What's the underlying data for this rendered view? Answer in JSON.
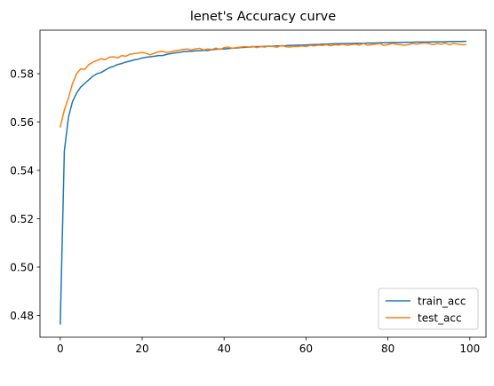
{
  "chart_data": {
    "type": "line",
    "title": "lenet's Accuracy curve",
    "xlabel": "",
    "ylabel": "",
    "xlim": [
      -4.95,
      103.95
    ],
    "ylim": [
      0.471,
      0.598
    ],
    "x_ticks": [
      0,
      20,
      40,
      60,
      80,
      100
    ],
    "y_ticks": [
      0.48,
      0.5,
      0.52,
      0.54,
      0.56,
      0.58
    ],
    "y_tick_labels": [
      "0.48",
      "0.50",
      "0.52",
      "0.54",
      "0.56",
      "0.58"
    ],
    "grid": false,
    "legend_position": "lower-right",
    "x": [
      0,
      1,
      2,
      3,
      4,
      5,
      6,
      7,
      8,
      9,
      10,
      11,
      12,
      13,
      14,
      15,
      16,
      17,
      18,
      19,
      20,
      21,
      22,
      23,
      24,
      25,
      26,
      27,
      28,
      29,
      30,
      31,
      32,
      33,
      34,
      35,
      36,
      37,
      38,
      39,
      40,
      41,
      42,
      43,
      44,
      45,
      46,
      47,
      48,
      49,
      50,
      51,
      52,
      53,
      54,
      55,
      56,
      57,
      58,
      59,
      60,
      61,
      62,
      63,
      64,
      65,
      66,
      67,
      68,
      69,
      70,
      71,
      72,
      73,
      74,
      75,
      76,
      77,
      78,
      79,
      80,
      81,
      82,
      83,
      84,
      85,
      86,
      87,
      88,
      89,
      90,
      91,
      92,
      93,
      94,
      95,
      96,
      97,
      98,
      99
    ],
    "series": [
      {
        "name": "train_acc",
        "color": "#1f77b4",
        "values": [
          0.4765,
          0.548,
          0.562,
          0.5685,
          0.572,
          0.5745,
          0.576,
          0.5775,
          0.579,
          0.58,
          0.5805,
          0.5815,
          0.5825,
          0.583,
          0.5838,
          0.5842,
          0.5848,
          0.5852,
          0.5857,
          0.586,
          0.5865,
          0.5868,
          0.587,
          0.5872,
          0.5875,
          0.5875,
          0.588,
          0.5883,
          0.5886,
          0.5888,
          0.5891,
          0.5892,
          0.5893,
          0.5894,
          0.5895,
          0.5896,
          0.5896,
          0.5899,
          0.5901,
          0.5902,
          0.5902,
          0.5904,
          0.5905,
          0.5906,
          0.5908,
          0.5909,
          0.591,
          0.5911,
          0.5912,
          0.5912,
          0.5913,
          0.5914,
          0.5914,
          0.5915,
          0.5915,
          0.5916,
          0.5917,
          0.5917,
          0.5918,
          0.5918,
          0.5919,
          0.592,
          0.5921,
          0.5921,
          0.5922,
          0.5922,
          0.5923,
          0.5924,
          0.5924,
          0.5925,
          0.5925,
          0.5925,
          0.5926,
          0.5926,
          0.5926,
          0.5927,
          0.5927,
          0.5927,
          0.5928,
          0.5928,
          0.5928,
          0.5929,
          0.5929,
          0.5929,
          0.593,
          0.593,
          0.593,
          0.5931,
          0.5931,
          0.5931,
          0.5931,
          0.5932,
          0.5932,
          0.5932,
          0.5932,
          0.5933,
          0.5933,
          0.5933,
          0.5933,
          0.5934
        ]
      },
      {
        "name": "test_acc",
        "color": "#ff7f0e",
        "values": [
          0.558,
          0.565,
          0.57,
          0.576,
          0.58,
          0.582,
          0.5818,
          0.5838,
          0.5848,
          0.5855,
          0.5862,
          0.5858,
          0.5868,
          0.587,
          0.5865,
          0.5875,
          0.5872,
          0.588,
          0.5883,
          0.5885,
          0.5888,
          0.5884,
          0.5878,
          0.5885,
          0.589,
          0.5892,
          0.5888,
          0.589,
          0.5895,
          0.5897,
          0.59,
          0.5902,
          0.5898,
          0.5902,
          0.5905,
          0.5898,
          0.5902,
          0.59,
          0.5906,
          0.59,
          0.5908,
          0.591,
          0.5905,
          0.5908,
          0.591,
          0.5912,
          0.591,
          0.5913,
          0.5908,
          0.5912,
          0.591,
          0.5915,
          0.5912,
          0.591,
          0.5917,
          0.5912,
          0.591,
          0.5913,
          0.5912,
          0.5915,
          0.5912,
          0.5917,
          0.5915,
          0.5918,
          0.5917,
          0.592,
          0.5915,
          0.592,
          0.5918,
          0.5922,
          0.5917,
          0.592,
          0.5922,
          0.5918,
          0.5925,
          0.5918,
          0.592,
          0.5922,
          0.5925,
          0.5917,
          0.592,
          0.5925,
          0.5922,
          0.592,
          0.5918,
          0.592,
          0.5925,
          0.5922,
          0.5925,
          0.5927,
          0.5925,
          0.592,
          0.5925,
          0.5922,
          0.5926,
          0.592,
          0.5925,
          0.5922,
          0.592,
          0.592
        ]
      }
    ]
  }
}
